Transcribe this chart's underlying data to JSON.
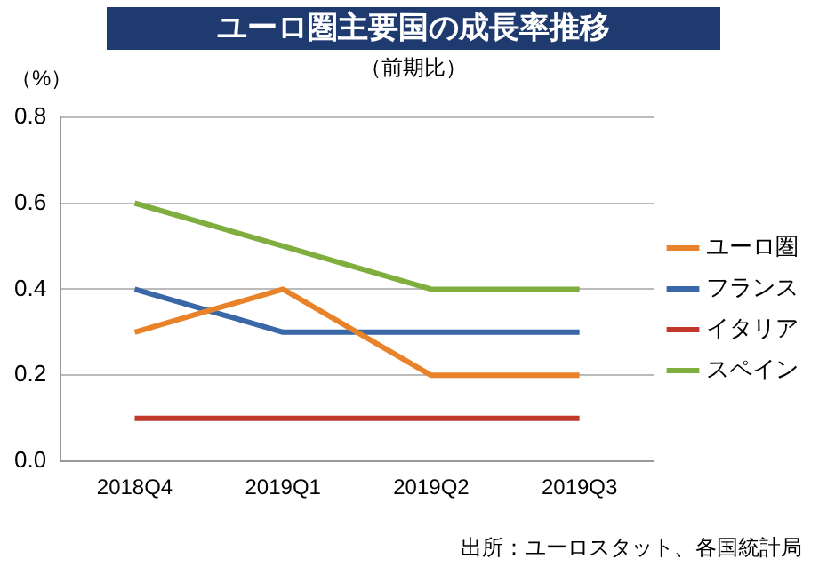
{
  "chart_data": {
    "type": "line",
    "title": "ユーロ圏主要国の成長率推移",
    "subtitle": "（前期比）",
    "ylabel": "（%）",
    "annotations": [
      "出所：ユーロスタット、各国統計局"
    ],
    "categories": [
      "2018Q4",
      "2019Q1",
      "2019Q2",
      "2019Q3"
    ],
    "series": [
      {
        "name": "ユーロ圏",
        "color": "#e8832a",
        "values": [
          0.3,
          0.4,
          0.2,
          0.2
        ]
      },
      {
        "name": "フランス",
        "color": "#3a67a8",
        "values": [
          0.4,
          0.3,
          0.3,
          0.3
        ]
      },
      {
        "name": "イタリア",
        "color": "#c0392b",
        "values": [
          0.1,
          0.1,
          0.1,
          0.1
        ]
      },
      {
        "name": "スペイン",
        "color": "#7fae3e",
        "values": [
          0.6,
          0.5,
          0.4,
          0.4
        ]
      }
    ],
    "ylim": [
      0,
      0.8
    ],
    "yticks": [
      {
        "value": 0,
        "label": "0.0"
      },
      0.2,
      0.4,
      0.6,
      0.8
    ],
    "grid": "y",
    "legend": "right",
    "marker": "none",
    "line_style": "solid"
  }
}
